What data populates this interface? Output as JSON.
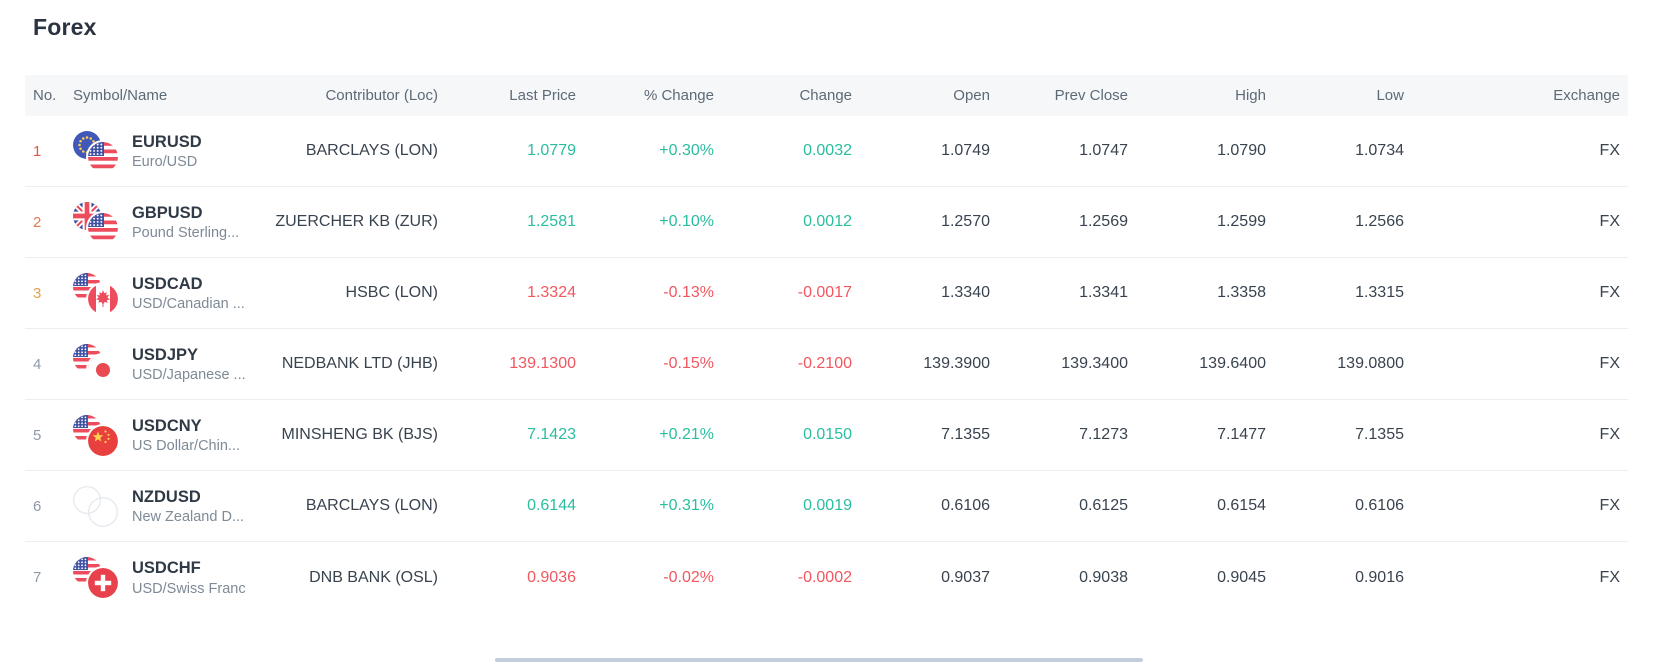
{
  "page": {
    "title": "Forex"
  },
  "colors": {
    "positive": "#2abda0",
    "negative": "#f2565f",
    "neutral_text": "#39434f",
    "header_bg": "#f6f7f9",
    "header_text": "#5d6a76"
  },
  "table": {
    "columns": [
      {
        "key": "no",
        "label": "No."
      },
      {
        "key": "symbol",
        "label": "Symbol/Name"
      },
      {
        "key": "contributor",
        "label": "Contributor (Loc)"
      },
      {
        "key": "last_price",
        "label": "Last Price"
      },
      {
        "key": "pct_change",
        "label": "% Change"
      },
      {
        "key": "change",
        "label": "Change"
      },
      {
        "key": "open",
        "label": "Open"
      },
      {
        "key": "prev_close",
        "label": "Prev Close"
      },
      {
        "key": "high",
        "label": "High"
      },
      {
        "key": "low",
        "label": "Low"
      },
      {
        "key": "exchange",
        "label": "Exchange"
      }
    ],
    "rows": [
      {
        "no": "1",
        "no_color": "#e15549",
        "flags": [
          "eu",
          "us"
        ],
        "symbol": "EURUSD",
        "name": "Euro/USD",
        "contributor": "BARCLAYS (LON)",
        "last_price": "1.0779",
        "pct_change": "+0.30%",
        "change": "0.0032",
        "trend": "up",
        "open": "1.0749",
        "prev_close": "1.0747",
        "high": "1.0790",
        "low": "1.0734",
        "exchange": "FX"
      },
      {
        "no": "2",
        "no_color": "#e17a4e",
        "flags": [
          "gb",
          "us"
        ],
        "symbol": "GBPUSD",
        "name": "Pound Sterling...",
        "contributor": "ZUERCHER KB (ZUR)",
        "last_price": "1.2581",
        "pct_change": "+0.10%",
        "change": "0.0012",
        "trend": "up",
        "open": "1.2570",
        "prev_close": "1.2569",
        "high": "1.2599",
        "low": "1.2566",
        "exchange": "FX"
      },
      {
        "no": "3",
        "no_color": "#e0a14e",
        "flags": [
          "us",
          "ca"
        ],
        "symbol": "USDCAD",
        "name": "USD/Canadian ...",
        "contributor": "HSBC (LON)",
        "last_price": "1.3324",
        "pct_change": "-0.13%",
        "change": "-0.0017",
        "trend": "down",
        "open": "1.3340",
        "prev_close": "1.3341",
        "high": "1.3358",
        "low": "1.3315",
        "exchange": "FX"
      },
      {
        "no": "4",
        "no_color": "#8e9ba9",
        "flags": [
          "us",
          "jp"
        ],
        "symbol": "USDJPY",
        "name": "USD/Japanese ...",
        "contributor": "NEDBANK LTD (JHB)",
        "last_price": "139.1300",
        "pct_change": "-0.15%",
        "change": "-0.2100",
        "trend": "down",
        "open": "139.3900",
        "prev_close": "139.3400",
        "high": "139.6400",
        "low": "139.0800",
        "exchange": "FX"
      },
      {
        "no": "5",
        "no_color": "#8e9ba9",
        "flags": [
          "us",
          "cn"
        ],
        "symbol": "USDCNY",
        "name": "US Dollar/Chin...",
        "contributor": "MINSHENG BK (BJS)",
        "last_price": "7.1423",
        "pct_change": "+0.21%",
        "change": "0.0150",
        "trend": "up",
        "open": "7.1355",
        "prev_close": "7.1273",
        "high": "7.1477",
        "low": "7.1355",
        "exchange": "FX"
      },
      {
        "no": "6",
        "no_color": "#8e9ba9",
        "flags": [
          "none",
          "none"
        ],
        "symbol": "NZDUSD",
        "name": "New Zealand D...",
        "contributor": "BARCLAYS (LON)",
        "last_price": "0.6144",
        "pct_change": "+0.31%",
        "change": "0.0019",
        "trend": "up",
        "open": "0.6106",
        "prev_close": "0.6125",
        "high": "0.6154",
        "low": "0.6106",
        "exchange": "FX"
      },
      {
        "no": "7",
        "no_color": "#8e9ba9",
        "flags": [
          "us",
          "ch"
        ],
        "symbol": "USDCHF",
        "name": "USD/Swiss Franc",
        "contributor": "DNB BANK (OSL)",
        "last_price": "0.9036",
        "pct_change": "-0.02%",
        "change": "-0.0002",
        "trend": "down",
        "open": "0.9037",
        "prev_close": "0.9038",
        "high": "0.9045",
        "low": "0.9016",
        "exchange": "FX"
      }
    ]
  }
}
